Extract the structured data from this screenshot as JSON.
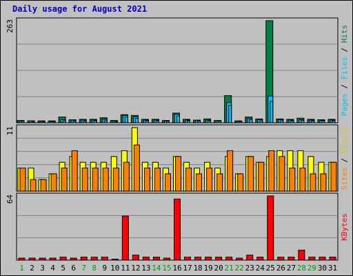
{
  "chart_data": [
    {
      "type": "bar",
      "title": "Daily usage for August 2021",
      "categories": [
        "1",
        "2",
        "3",
        "4",
        "5",
        "6",
        "7",
        "8",
        "9",
        "10",
        "11",
        "12",
        "13",
        "14",
        "15",
        "16",
        "17",
        "18",
        "19",
        "20",
        "21",
        "22",
        "23",
        "24",
        "25",
        "26",
        "27",
        "28",
        "29",
        "30",
        "31"
      ],
      "weekend_days": [
        "1",
        "7",
        "8",
        "14",
        "15",
        "21",
        "22",
        "28",
        "29"
      ],
      "ymax_label": "263",
      "ylim": [
        0,
        263
      ],
      "legend": [
        "Pages",
        "Files",
        "Hits"
      ],
      "series": [
        {
          "name": "Hits",
          "color": "#008040",
          "values": [
            6,
            5,
            5,
            5,
            15,
            8,
            9,
            9,
            13,
            6,
            21,
            19,
            9,
            9,
            6,
            25,
            9,
            7,
            10,
            6,
            70,
            5,
            15,
            10,
            263,
            10,
            9,
            12,
            9,
            8,
            9
          ]
        },
        {
          "name": "Files",
          "color": "#00c0ff",
          "values": [
            5,
            5,
            4,
            4,
            8,
            7,
            7,
            7,
            9,
            5,
            19,
            16,
            7,
            7,
            5,
            22,
            7,
            6,
            7,
            5,
            52,
            4,
            11,
            8,
            69,
            8,
            7,
            8,
            7,
            6,
            7
          ]
        },
        {
          "name": "Pages",
          "color": "#00c0ff",
          "values": [
            4,
            3,
            3,
            3,
            5,
            4,
            4,
            5,
            5,
            3,
            15,
            12,
            5,
            5,
            4,
            18,
            5,
            4,
            5,
            4,
            45,
            3,
            8,
            5,
            55,
            5,
            5,
            6,
            5,
            5,
            5
          ]
        }
      ]
    },
    {
      "type": "bar",
      "ymax_label": "11",
      "ylim": [
        0,
        11
      ],
      "legend": [
        "Sites",
        "Visits"
      ],
      "series": [
        {
          "name": "Visits",
          "color": "#ffff00",
          "values": [
            4,
            4,
            2,
            3,
            5,
            6,
            5,
            5,
            5,
            6,
            7,
            11,
            5,
            5,
            4,
            6,
            5,
            4,
            5,
            4,
            6,
            3,
            6,
            5,
            6,
            7,
            7,
            7,
            6,
            5,
            5
          ]
        },
        {
          "name": "Sites",
          "color": "#ff8000",
          "values": [
            4,
            2,
            2,
            3,
            4,
            7,
            4,
            4,
            4,
            4,
            5,
            8,
            4,
            4,
            3,
            6,
            4,
            3,
            4,
            3,
            7,
            3,
            6,
            5,
            7,
            6,
            4,
            4,
            3,
            3,
            5
          ]
        }
      ]
    },
    {
      "type": "bar",
      "ymax_label": "64",
      "ylim": [
        0,
        64
      ],
      "legend": [
        "KBytes"
      ],
      "series": [
        {
          "name": "KBytes",
          "color": "#ff0000",
          "values": [
            2,
            2,
            2,
            2,
            3,
            2,
            3,
            3,
            3,
            1,
            44,
            5,
            3,
            3,
            2,
            61,
            3,
            3,
            3,
            3,
            3,
            2,
            5,
            3,
            64,
            3,
            3,
            10,
            3,
            3,
            3
          ]
        }
      ]
    }
  ]
}
